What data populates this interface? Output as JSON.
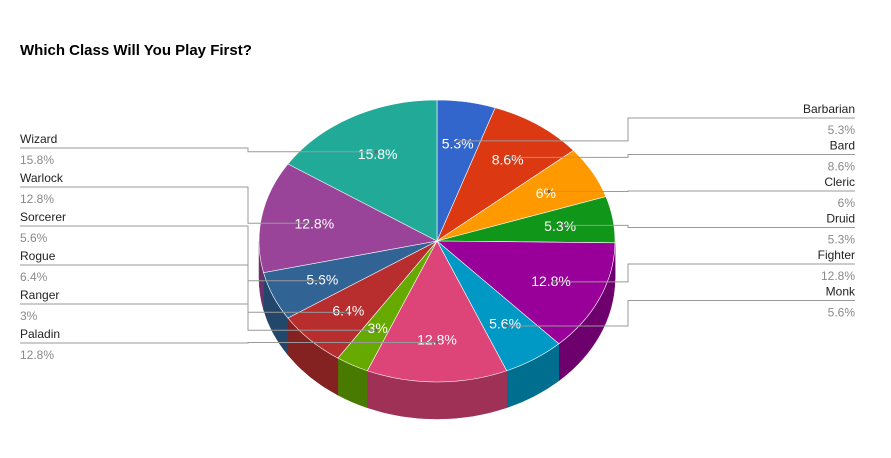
{
  "chart_data": {
    "type": "pie",
    "title": "Which Class Will You Play First?",
    "three_d": true,
    "legend": "labeled lines",
    "categories": [
      "Barbarian",
      "Bard",
      "Cleric",
      "Druid",
      "Fighter",
      "Monk",
      "Paladin",
      "Ranger",
      "Rogue",
      "Sorcerer",
      "Warlock",
      "Wizard"
    ],
    "values": [
      5.3,
      8.6,
      6,
      5.3,
      12.8,
      5.6,
      12.8,
      3,
      6.4,
      5.6,
      12.8,
      15.8
    ],
    "labels": [
      "5.3%",
      "8.6%",
      "6%",
      "5.3%",
      "12.8%",
      "5.6%",
      "12.8%",
      "3%",
      "6.4%",
      "5.6%",
      "12.8%",
      "15.8%"
    ],
    "colors": [
      "#3366cc",
      "#dc3912",
      "#ff9900",
      "#109618",
      "#990099",
      "#0099c6",
      "#dd4477",
      "#66aa00",
      "#b82e2e",
      "#316395",
      "#994499",
      "#22aa99"
    ]
  }
}
